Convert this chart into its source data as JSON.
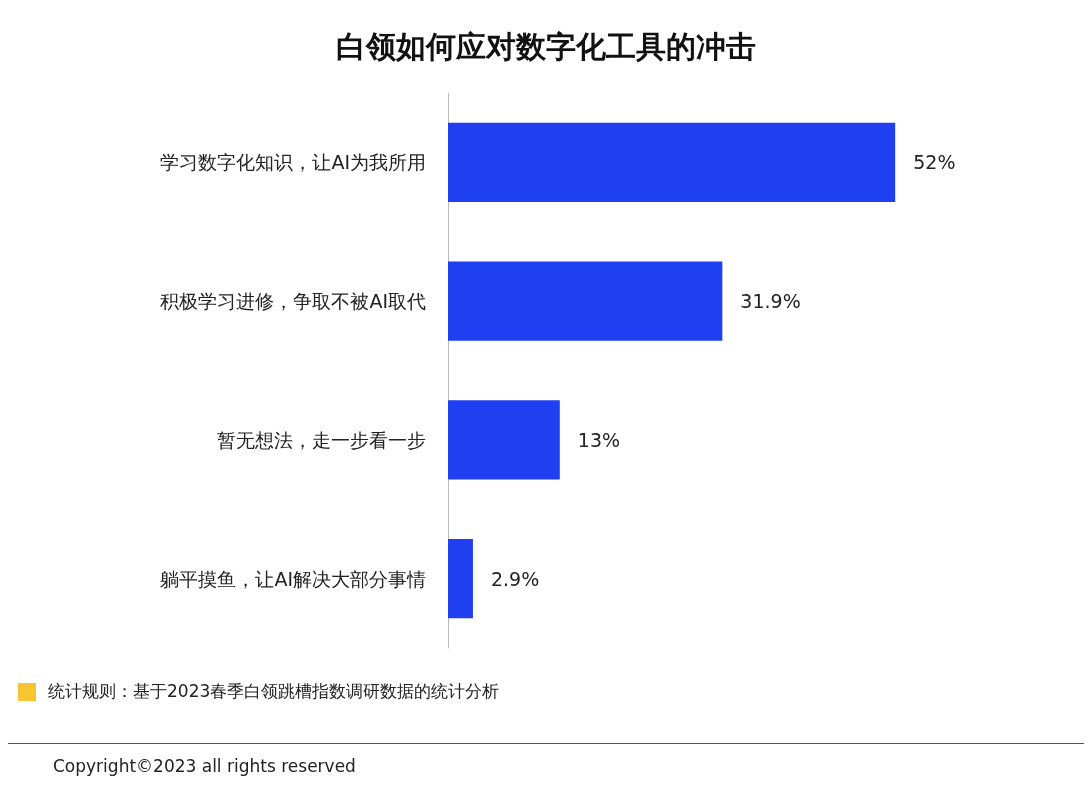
{
  "chart_data": {
    "type": "bar",
    "orientation": "horizontal",
    "title": "白领如何应对数字化工具的冲击",
    "categories": [
      "学习数字化知识，让AI为我所用",
      "积极学习进修，争取不被AI取代",
      "暂无想法，走一步看一步",
      "躺平摸鱼，让AI解决大部分事情"
    ],
    "values": [
      52,
      31.9,
      13,
      2.9
    ],
    "value_labels": [
      "52%",
      "31.9%",
      "13%",
      "2.9%"
    ],
    "color": "#1f3ff0",
    "annotations": [
      "统计规则：基于2023春季白领跳槽指数调研数据的统计分析",
      "Copyright©2023 all rights reserved"
    ]
  }
}
